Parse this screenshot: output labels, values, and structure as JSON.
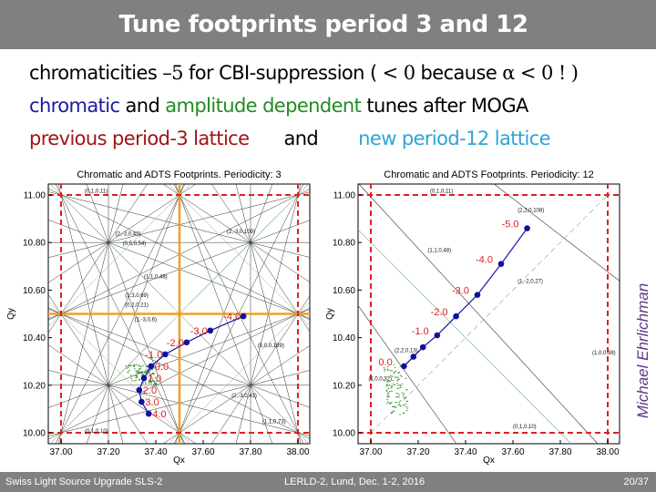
{
  "header": {
    "title": "Tune footprints period 3 and 12"
  },
  "body": {
    "line1": {
      "a": "chromaticities ",
      "b": "–5",
      "c": " for CBI-suppression   ( ",
      "d": "< 0",
      "e": " because ",
      "f": "α < 0 ! )"
    },
    "line2": {
      "a": "chromatic",
      "b": " and ",
      "c": "amplitude dependent",
      "d": " tunes after MOGA"
    },
    "line3": {
      "a": "previous period-3 lattice",
      "b": "and",
      "c": "new period-12 lattice"
    }
  },
  "author": "Michael Ehrlichman",
  "footer": {
    "left": "Swiss Light Source Upgrade  SLS-2",
    "center": "LERLD-2, Lund, Dec. 1-2, 2016",
    "right": "20/37"
  },
  "colors": {
    "chromatic": "#1010a0",
    "chroma_label": "#e02020",
    "integer_lines": "#e02020",
    "half_integer": "#f0a020",
    "amplitude": "#2a8a2a",
    "resonance": "#333333"
  },
  "chart_data": [
    {
      "type": "line",
      "title": "Chromatic and ADTS Footprints. Periodicity: 3",
      "xlabel": "Qx",
      "ylabel": "Qy",
      "xlim": [
        36.95,
        38.05
      ],
      "ylim": [
        9.95,
        11.05
      ],
      "xticks": [
        "37.00",
        "37.20",
        "37.40",
        "37.60",
        "37.80",
        "38.00"
      ],
      "yticks": [
        "10.00",
        "10.20",
        "10.40",
        "10.60",
        "10.80",
        "11.00"
      ],
      "integer_lines": {
        "x": [
          37.0,
          38.0
        ],
        "y": [
          10.0,
          11.0
        ]
      },
      "half_integer_lines": {
        "x": [
          37.5
        ],
        "y": [
          10.5
        ]
      },
      "series": [
        {
          "x": [
            37.77,
            37.63,
            37.53,
            37.44,
            37.38,
            37.35,
            37.33,
            37.34,
            37.37
          ],
          "y": [
            10.49,
            10.43,
            10.38,
            10.33,
            10.28,
            10.23,
            10.18,
            10.13,
            10.08
          ],
          "labels": [
            "-4.0",
            "-3.0",
            "-2.0",
            "-1.0",
            "0.0",
            "1.0",
            "2.0",
            "3.0",
            "4.0"
          ]
        }
      ],
      "resonance_labels": [
        {
          "t": "(0,1,0,11)",
          "x": 37.1,
          "y": 11.01
        },
        {
          "t": "(2,-3,0,42)",
          "x": 37.23,
          "y": 10.83
        },
        {
          "t": "(0,5,0,54)",
          "x": 37.26,
          "y": 10.79
        },
        {
          "t": "(2,-3,0,109)",
          "x": 37.7,
          "y": 10.84
        },
        {
          "t": "(1,1,0,48)",
          "x": 37.35,
          "y": 10.65
        },
        {
          "t": "(1,3,0,69)",
          "x": 37.27,
          "y": 10.57
        },
        {
          "t": "(0,2,0,21)",
          "x": 37.27,
          "y": 10.53
        },
        {
          "t": "(1,-3,0,6)",
          "x": 37.31,
          "y": 10.47
        },
        {
          "t": "(5,0,0,189)",
          "x": 37.83,
          "y": 10.36
        },
        {
          "t": "(2,-3,0,43)",
          "x": 37.72,
          "y": 10.15
        },
        {
          "t": "(0,1,0,10)",
          "x": 37.1,
          "y": 10.0
        },
        {
          "t": "(1,1,0,73)",
          "x": 37.85,
          "y": 10.04
        }
      ]
    },
    {
      "type": "line",
      "title": "Chromatic and ADTS Footprints. Periodicity: 12",
      "xlabel": "Qx",
      "ylabel": "Qy",
      "xlim": [
        36.95,
        38.05
      ],
      "ylim": [
        9.95,
        11.05
      ],
      "xticks": [
        "37.00",
        "37.20",
        "37.40",
        "37.60",
        "37.80",
        "38.00"
      ],
      "yticks": [
        "10.00",
        "10.20",
        "10.40",
        "10.60",
        "10.80",
        "11.00"
      ],
      "integer_lines": {
        "x": [
          37.0,
          38.0
        ],
        "y": [
          10.0,
          11.0
        ]
      },
      "series": [
        {
          "x": [
            37.66,
            37.55,
            37.45,
            37.36,
            37.28,
            37.22,
            37.18,
            37.14
          ],
          "y": [
            10.86,
            10.71,
            10.58,
            10.49,
            10.41,
            10.36,
            10.32,
            10.28
          ],
          "labels": [
            "-5.0",
            "-4.0",
            "-3.0",
            "-2.0",
            "-1.0",
            "",
            "",
            "0.0"
          ]
        }
      ],
      "resonance_labels": [
        {
          "t": "(0,1,0,11)",
          "x": 37.25,
          "y": 11.01
        },
        {
          "t": "(2,2,0,108)",
          "x": 37.62,
          "y": 10.93
        },
        {
          "t": "(1,1,0,48)",
          "x": 37.24,
          "y": 10.76
        },
        {
          "t": "(1,-2,0,27)",
          "x": 37.62,
          "y": 10.63
        },
        {
          "t": "(2,2,0,13)",
          "x": 37.1,
          "y": 10.34
        },
        {
          "t": "(1,0,0,32)",
          "x": 36.99,
          "y": 10.22
        },
        {
          "t": "(1,0,0,38)",
          "x": 37.98,
          "y": 10.33
        },
        {
          "t": "(0,1,0,10)",
          "x": 37.6,
          "y": 10.02
        }
      ]
    }
  ]
}
